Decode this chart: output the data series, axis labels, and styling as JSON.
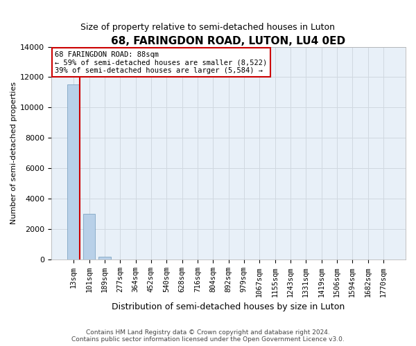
{
  "title": "68, FARINGDON ROAD, LUTON, LU4 0ED",
  "subtitle": "Size of property relative to semi-detached houses in Luton",
  "xlabel": "Distribution of semi-detached houses by size in Luton",
  "ylabel": "Number of semi-detached properties",
  "bar_labels": [
    "13sqm",
    "101sqm",
    "189sqm",
    "277sqm",
    "364sqm",
    "452sqm",
    "540sqm",
    "628sqm",
    "716sqm",
    "804sqm",
    "892sqm",
    "979sqm",
    "1067sqm",
    "1155sqm",
    "1243sqm",
    "1331sqm",
    "1419sqm",
    "1506sqm",
    "1594sqm",
    "1682sqm",
    "1770sqm"
  ],
  "bar_values": [
    11500,
    3000,
    200,
    0,
    0,
    0,
    0,
    0,
    0,
    0,
    0,
    0,
    0,
    0,
    0,
    0,
    0,
    0,
    0,
    0,
    0
  ],
  "bar_color": "#b8d0e8",
  "bar_edge_color": "#7099bb",
  "ylim": [
    0,
    14000
  ],
  "yticks": [
    0,
    2000,
    4000,
    6000,
    8000,
    10000,
    12000,
    14000
  ],
  "property_line_color": "#cc0000",
  "annotation_title": "68 FARINGDON ROAD: 88sqm",
  "annotation_line1": "← 59% of semi-detached houses are smaller (8,522)",
  "annotation_line2": "39% of semi-detached houses are larger (5,584) →",
  "annotation_box_color": "#ffffff",
  "annotation_box_edge_color": "#cc0000",
  "grid_color": "#d0d8e0",
  "background_color": "#e8f0f8",
  "footer_line1": "Contains HM Land Registry data © Crown copyright and database right 2024.",
  "footer_line2": "Contains public sector information licensed under the Open Government Licence v3.0."
}
